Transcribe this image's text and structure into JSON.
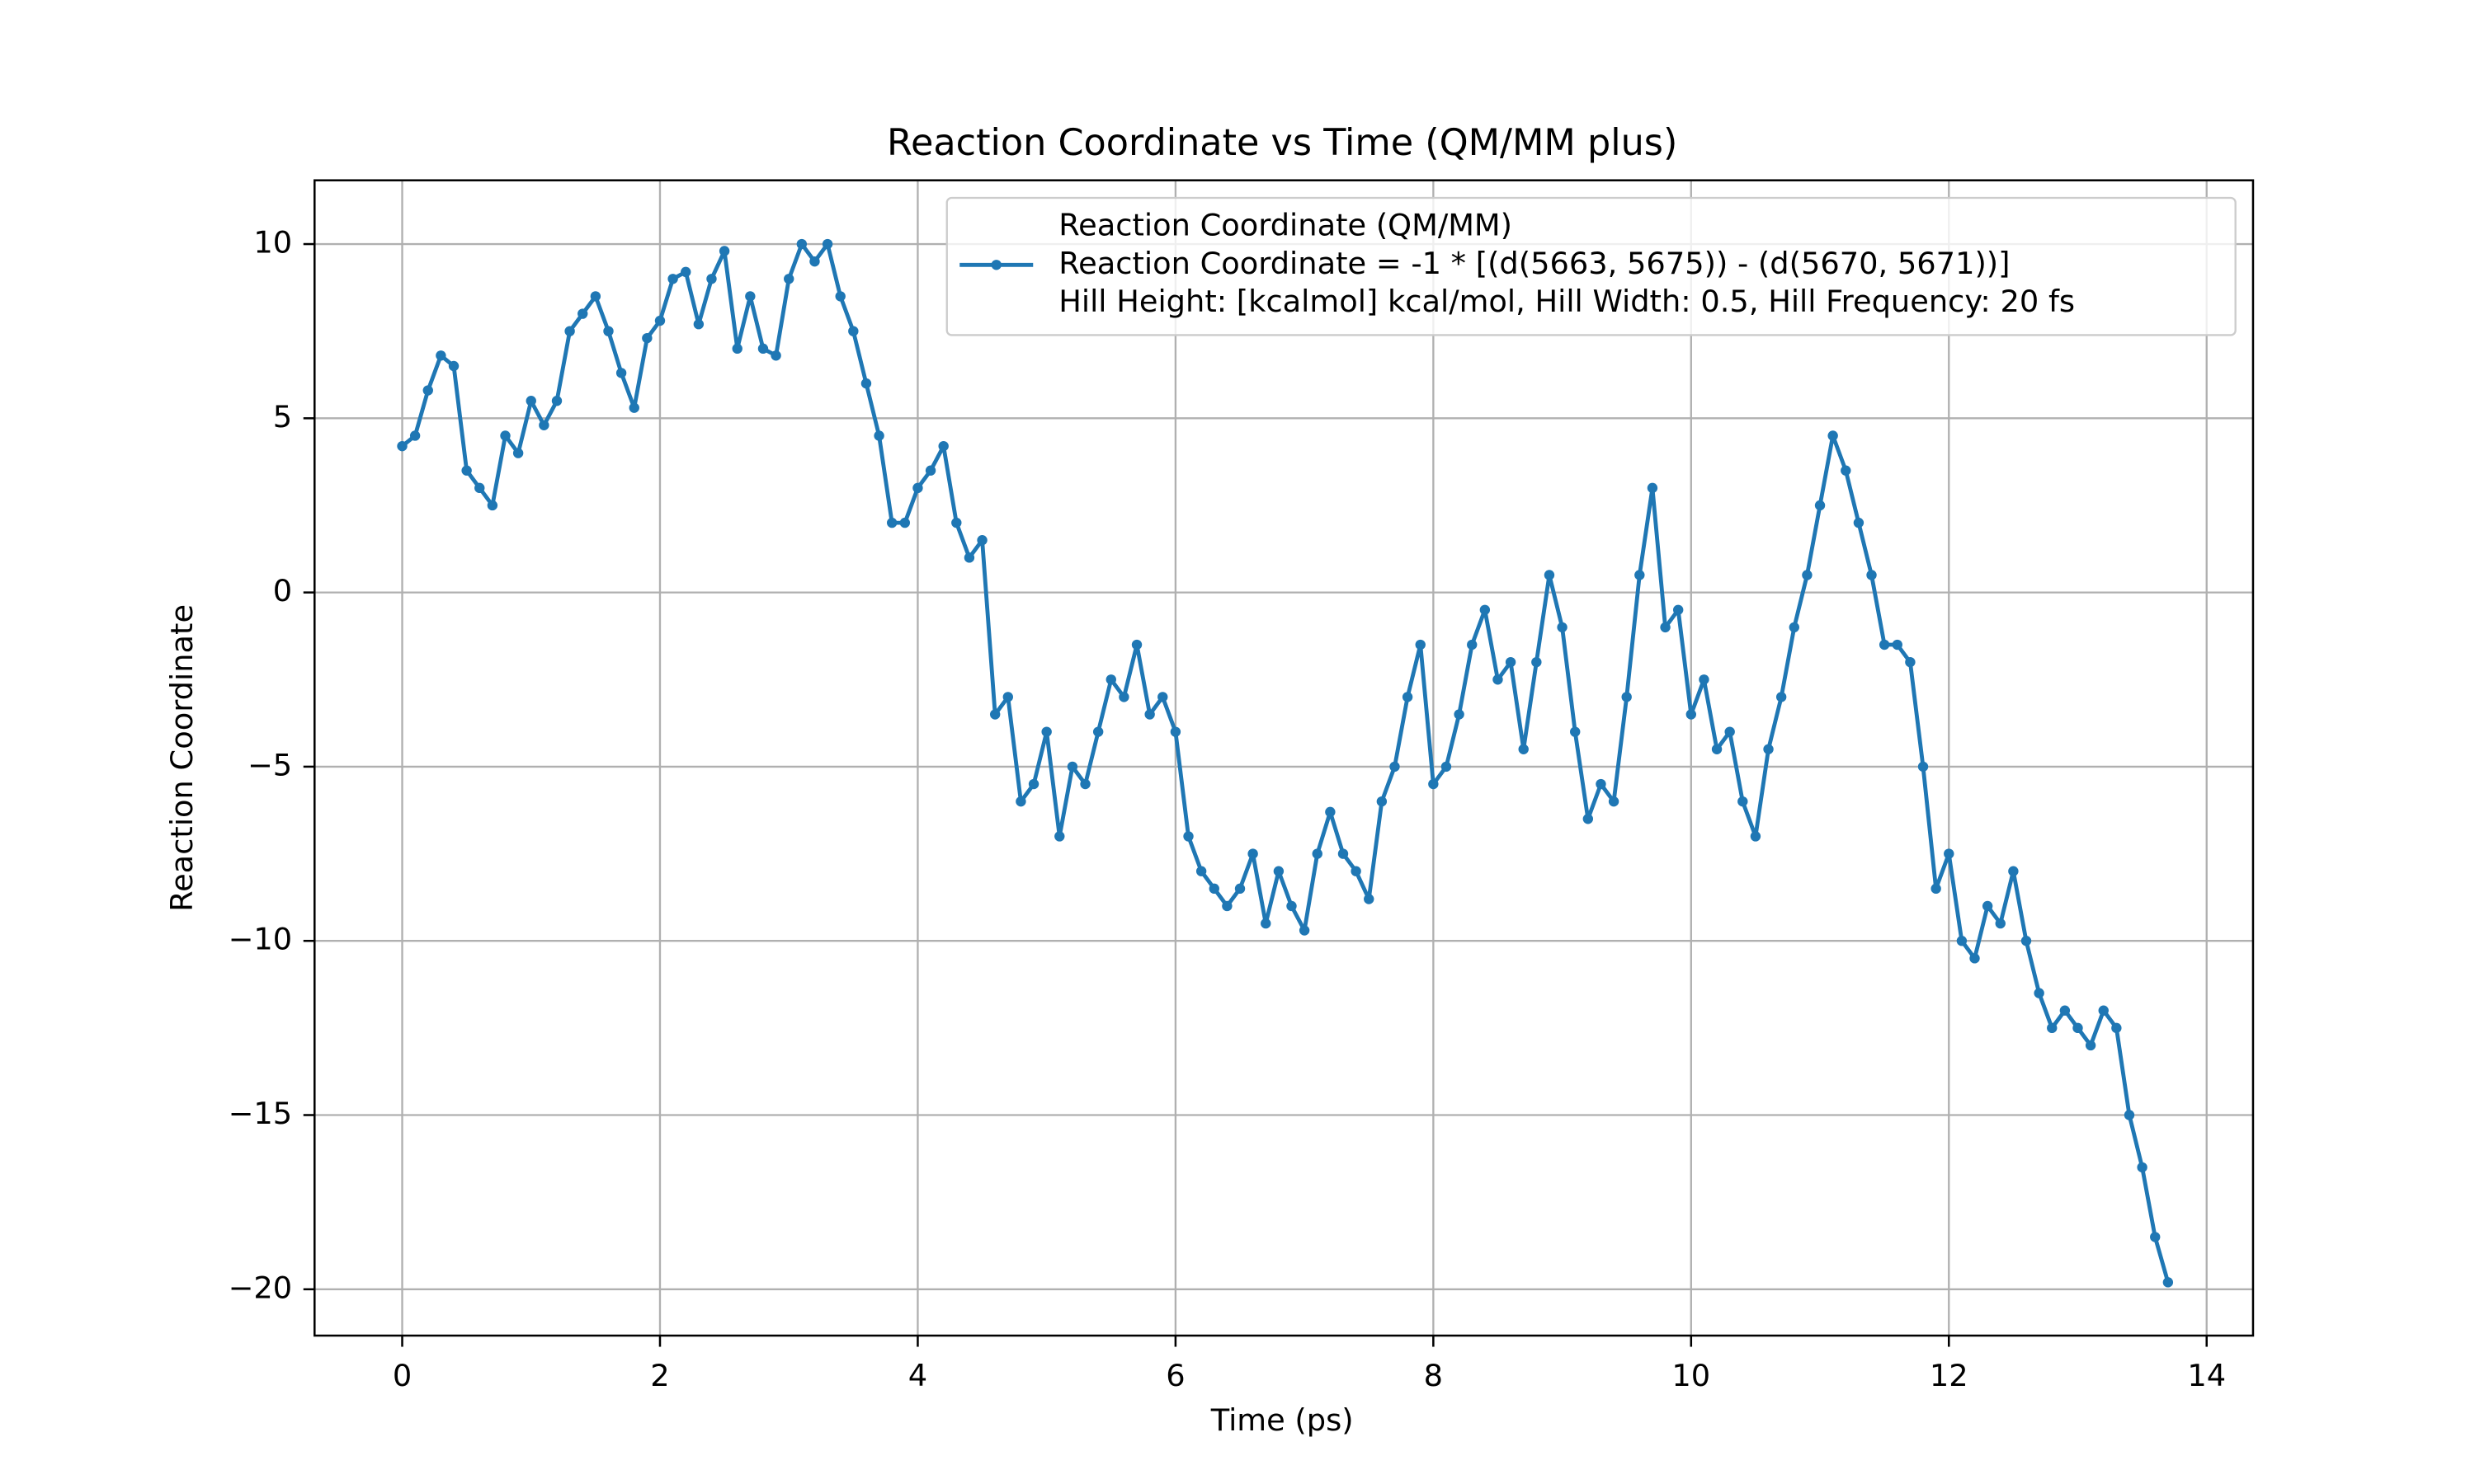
{
  "chart_data": {
    "type": "line",
    "title": "Reaction Coordinate vs Time (QM/MM plus)",
    "xlabel": "Time (ps)",
    "ylabel": "Reaction Coordinate",
    "legend_title": "Reaction Coordinate (QM/MM)",
    "legend_subtitle": "Hill Height: [kcalmol] kcal/mol, Hill Width: 0.5, Hill Frequency: 20 fs",
    "legend": "upper right",
    "grid": true,
    "xlim": [
      -0.68,
      14.36
    ],
    "ylim": [
      -21.33,
      11.83
    ],
    "xticks": [
      0,
      2,
      4,
      6,
      8,
      10,
      12,
      14
    ],
    "yticks": [
      {
        "value": -20,
        "label": "−20"
      },
      {
        "value": -15,
        "label": "−15"
      },
      {
        "value": -10,
        "label": "−10"
      },
      {
        "value": -5,
        "label": "−5"
      },
      0,
      5,
      10
    ],
    "x": [
      0.0,
      0.1,
      0.2,
      0.3,
      0.4,
      0.5,
      0.6,
      0.7,
      0.8,
      0.9,
      1.0,
      1.1,
      1.2,
      1.3,
      1.4,
      1.5,
      1.6,
      1.7,
      1.8,
      1.9,
      2.0,
      2.1,
      2.2,
      2.3,
      2.4,
      2.5,
      2.6,
      2.7,
      2.8,
      2.9,
      3.0,
      3.1,
      3.2,
      3.3,
      3.4,
      3.5,
      3.6,
      3.7,
      3.8,
      3.9,
      4.0,
      4.1,
      4.2,
      4.3,
      4.4,
      4.5,
      4.6,
      4.7,
      4.8,
      4.9,
      5.0,
      5.1,
      5.2,
      5.3,
      5.4,
      5.5,
      5.6,
      5.7,
      5.8,
      5.9,
      6.0,
      6.1,
      6.2,
      6.3,
      6.4,
      6.5,
      6.6,
      6.7,
      6.8,
      6.9,
      7.0,
      7.1,
      7.2,
      7.3,
      7.4,
      7.5,
      7.6,
      7.7,
      7.8,
      7.9,
      8.0,
      8.1,
      8.2,
      8.3,
      8.4,
      8.5,
      8.6,
      8.7,
      8.8,
      8.9,
      9.0,
      9.1,
      9.2,
      9.3,
      9.4,
      9.5,
      9.6,
      9.7,
      9.8,
      9.9,
      10.0,
      10.1,
      10.2,
      10.3,
      10.4,
      10.5,
      10.6,
      10.7,
      10.8,
      10.9,
      11.0,
      11.1,
      11.2,
      11.3,
      11.4,
      11.5,
      11.6,
      11.7,
      11.8,
      11.9,
      12.0,
      12.1,
      12.2,
      12.3,
      12.4,
      12.5,
      12.6,
      12.7,
      12.8,
      12.9,
      13.0,
      13.1,
      13.2,
      13.3,
      13.4,
      13.5,
      13.6,
      13.7
    ],
    "series": [
      {
        "name": "Reaction Coordinate = -1 * [(d(5663, 5675)) - (d(5670, 5671))]",
        "color": "#1f77b4",
        "values": [
          4.2,
          4.5,
          5.8,
          6.8,
          6.5,
          3.5,
          3.0,
          2.5,
          4.5,
          4.0,
          5.5,
          4.8,
          5.5,
          7.5,
          8.0,
          8.5,
          7.5,
          6.3,
          5.3,
          7.3,
          7.8,
          9.0,
          9.2,
          7.7,
          9.0,
          9.8,
          7.0,
          8.5,
          7.0,
          6.8,
          9.0,
          10.0,
          9.5,
          10.0,
          8.5,
          7.5,
          6.0,
          4.5,
          2.0,
          2.0,
          3.0,
          3.5,
          4.2,
          2.0,
          1.0,
          1.5,
          -3.5,
          -3.0,
          -6.0,
          -5.5,
          -4.0,
          -7.0,
          -5.0,
          -5.5,
          -4.0,
          -2.5,
          -3.0,
          -1.5,
          -3.5,
          -3.0,
          -4.0,
          -7.0,
          -8.0,
          -8.5,
          -9.0,
          -8.5,
          -7.5,
          -9.5,
          -8.0,
          -9.0,
          -9.7,
          -7.5,
          -6.3,
          -7.5,
          -8.0,
          -8.8,
          -6.0,
          -5.0,
          -3.0,
          -1.5,
          -5.5,
          -5.0,
          -3.5,
          -1.5,
          -0.5,
          -2.5,
          -2.0,
          -4.5,
          -2.0,
          0.5,
          -1.0,
          -4.0,
          -6.5,
          -5.5,
          -6.0,
          -3.0,
          0.5,
          3.0,
          -1.0,
          -0.5,
          -3.5,
          -2.5,
          -4.5,
          -4.0,
          -6.0,
          -7.0,
          -4.5,
          -3.0,
          -1.0,
          0.5,
          2.5,
          4.5,
          3.5,
          2.0,
          0.5,
          -1.5,
          -1.5,
          -2.0,
          -5.0,
          -8.5,
          -7.5,
          -10.0,
          -10.5,
          -9.0,
          -9.5,
          -8.0,
          -10.0,
          -11.5,
          -12.5,
          -12.0,
          -12.5,
          -13.0,
          -12.0,
          -12.5,
          -15.0,
          -16.5,
          -18.5,
          -19.8
        ]
      }
    ]
  }
}
